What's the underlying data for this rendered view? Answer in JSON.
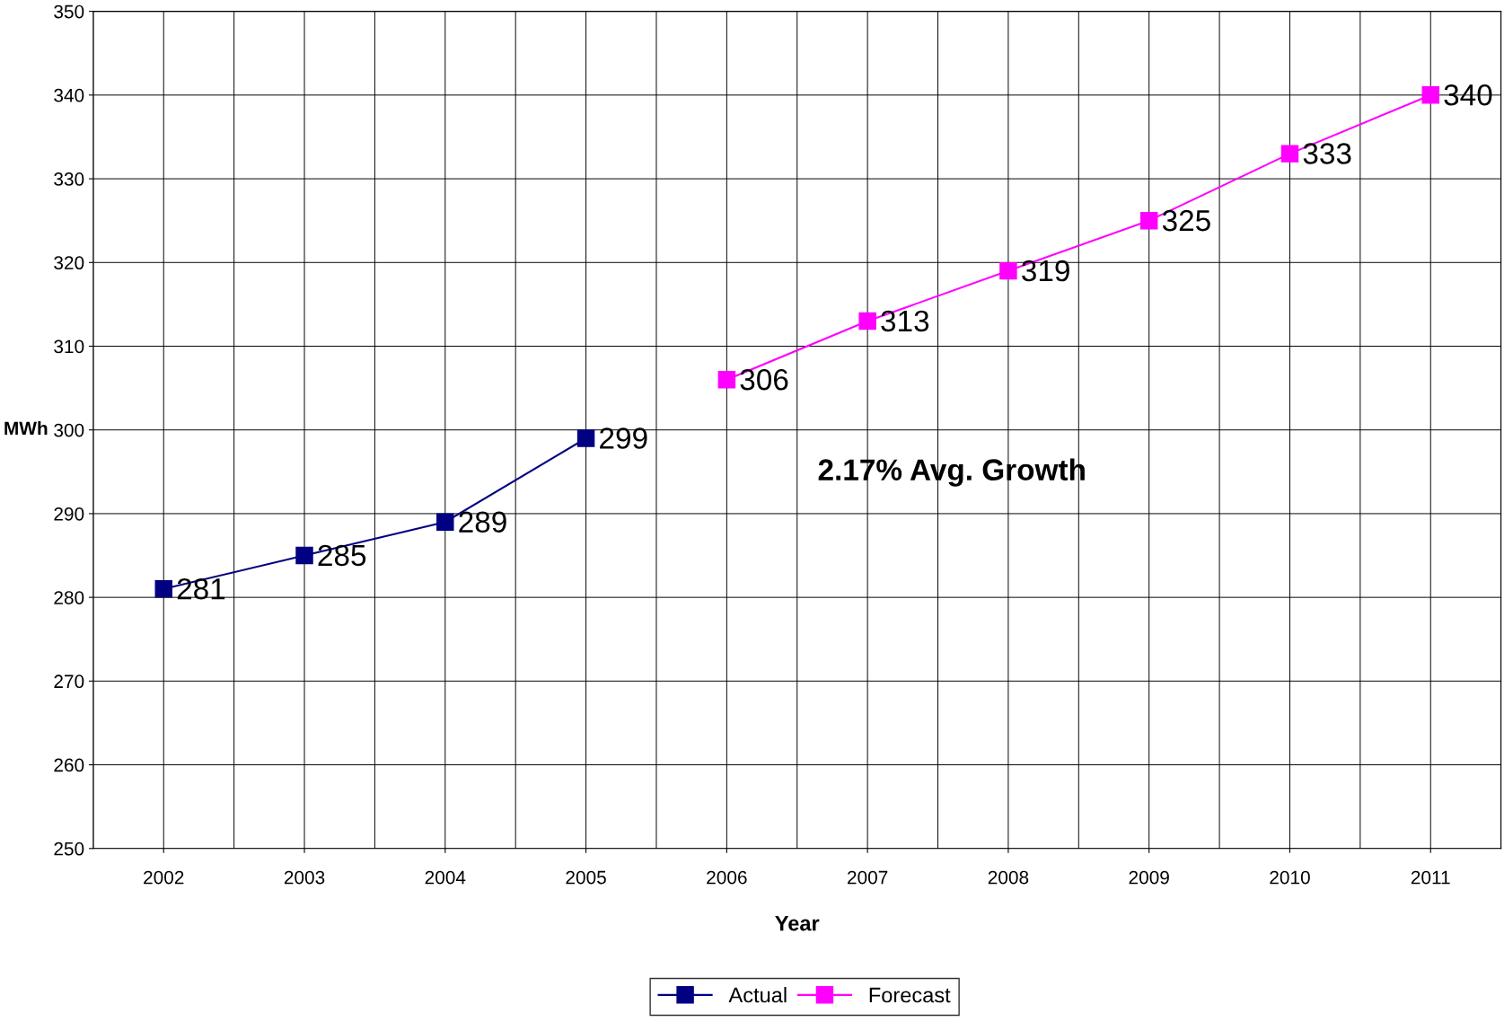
{
  "chart_data": {
    "type": "line",
    "xlabel": "Year",
    "ylabel": "MWh",
    "categories": [
      "2002",
      "2003",
      "2004",
      "2005",
      "2006",
      "2007",
      "2008",
      "2009",
      "2010",
      "2011"
    ],
    "series": [
      {
        "name": "Actual",
        "color": "#000080",
        "values": [
          281,
          285,
          289,
          299,
          null,
          null,
          null,
          null,
          null,
          null
        ]
      },
      {
        "name": "Forecast",
        "color": "#ff00ff",
        "values": [
          null,
          null,
          null,
          null,
          306,
          313,
          319,
          325,
          333,
          340
        ]
      }
    ],
    "ylim": [
      250,
      350
    ],
    "yticks": [
      250,
      260,
      270,
      280,
      290,
      300,
      310,
      320,
      330,
      340,
      350
    ],
    "annotations": [
      "2.17% Avg. Growth"
    ],
    "data_labels": true,
    "grid": true,
    "legend": "bottom",
    "marker": "square",
    "line_style": "solid"
  }
}
